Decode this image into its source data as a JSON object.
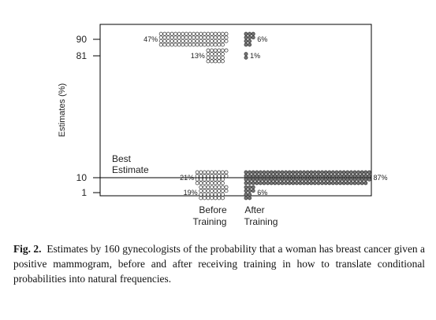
{
  "chart_data": {
    "type": "scatter",
    "ylabel": "Estimates (%)",
    "y_ticks": [
      "90",
      "81",
      "10",
      "1"
    ],
    "x_groups": [
      "Before Training",
      "After Training"
    ],
    "x_group_lines": [
      [
        "Before",
        "Training"
      ],
      [
        "After",
        "Training"
      ]
    ],
    "annotation": [
      "Best",
      "Estimate"
    ],
    "series": [
      {
        "group": "Before Training",
        "estimate": "90",
        "percent": 47,
        "label": "47%"
      },
      {
        "group": "Before Training",
        "estimate": "81",
        "percent": 13,
        "label": "13%"
      },
      {
        "group": "Before Training",
        "estimate": "10",
        "percent": 21,
        "label": "21%"
      },
      {
        "group": "Before Training",
        "estimate": "1",
        "percent": 19,
        "label": "19%"
      },
      {
        "group": "After Training",
        "estimate": "90",
        "percent": 6,
        "label": "6%"
      },
      {
        "group": "After Training",
        "estimate": "81",
        "percent": 1,
        "label": "1%"
      },
      {
        "group": "After Training",
        "estimate": "10",
        "percent": 87,
        "label": "87%"
      },
      {
        "group": "After Training",
        "estimate": "1",
        "percent": 6,
        "label": "6%"
      }
    ],
    "best_estimate": "10"
  },
  "caption": {
    "label": "Fig. 2.",
    "text": "Estimates by 160 gynecologists of the probability that a woman has breast cancer given a positive mammogram, before and after receiving training in how to translate conditional probabilities into natural frequencies."
  },
  "colors": {
    "before_marker": "#ffffff",
    "after_marker": "#777777",
    "marker_stroke": "#333333"
  }
}
